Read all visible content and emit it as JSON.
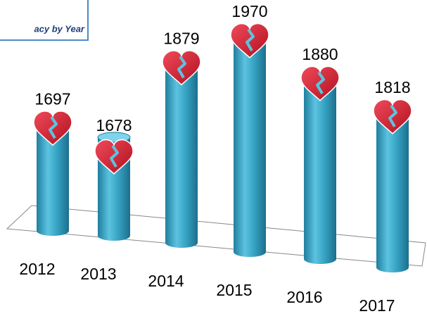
{
  "chart_data": {
    "type": "bar",
    "title": "acy by Year",
    "categories": [
      "2012",
      "2013",
      "2014",
      "2015",
      "2016",
      "2017"
    ],
    "values": [
      1697,
      1678,
      1879,
      1970,
      1880,
      1818
    ],
    "color": "#3aa7c8"
  }
}
